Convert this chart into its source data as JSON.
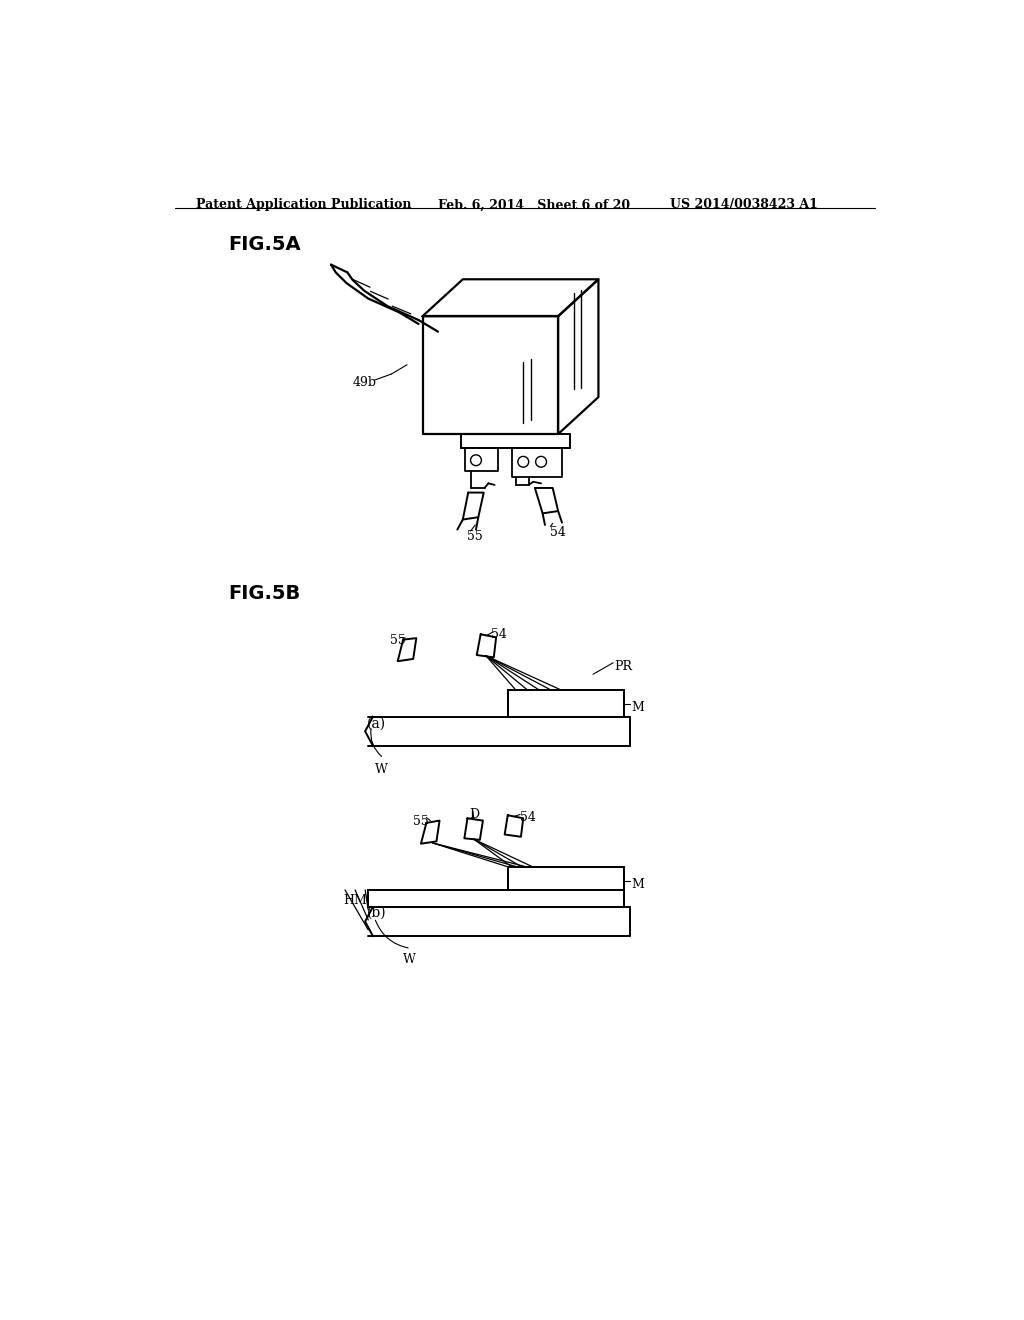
{
  "background_color": "#ffffff",
  "header_left": "Patent Application Publication",
  "header_center": "Feb. 6, 2014   Sheet 6 of 20",
  "header_right": "US 2014/0038423 A1",
  "fig5a_label": "FIG.5A",
  "fig5b_label": "FIG.5B",
  "label_49b": "49b",
  "label_54a": "54",
  "label_55a": "55",
  "label_54b": "54",
  "label_55b": "55",
  "label_54b2": "54",
  "label_55b2": "55",
  "label_PR": "PR",
  "label_M_a": "M",
  "label_M_b": "M",
  "label_W_a": "W",
  "label_W_b": "W",
  "label_HM": "HM",
  "label_D": "D",
  "label_a": "(a)",
  "label_b": "(b)"
}
